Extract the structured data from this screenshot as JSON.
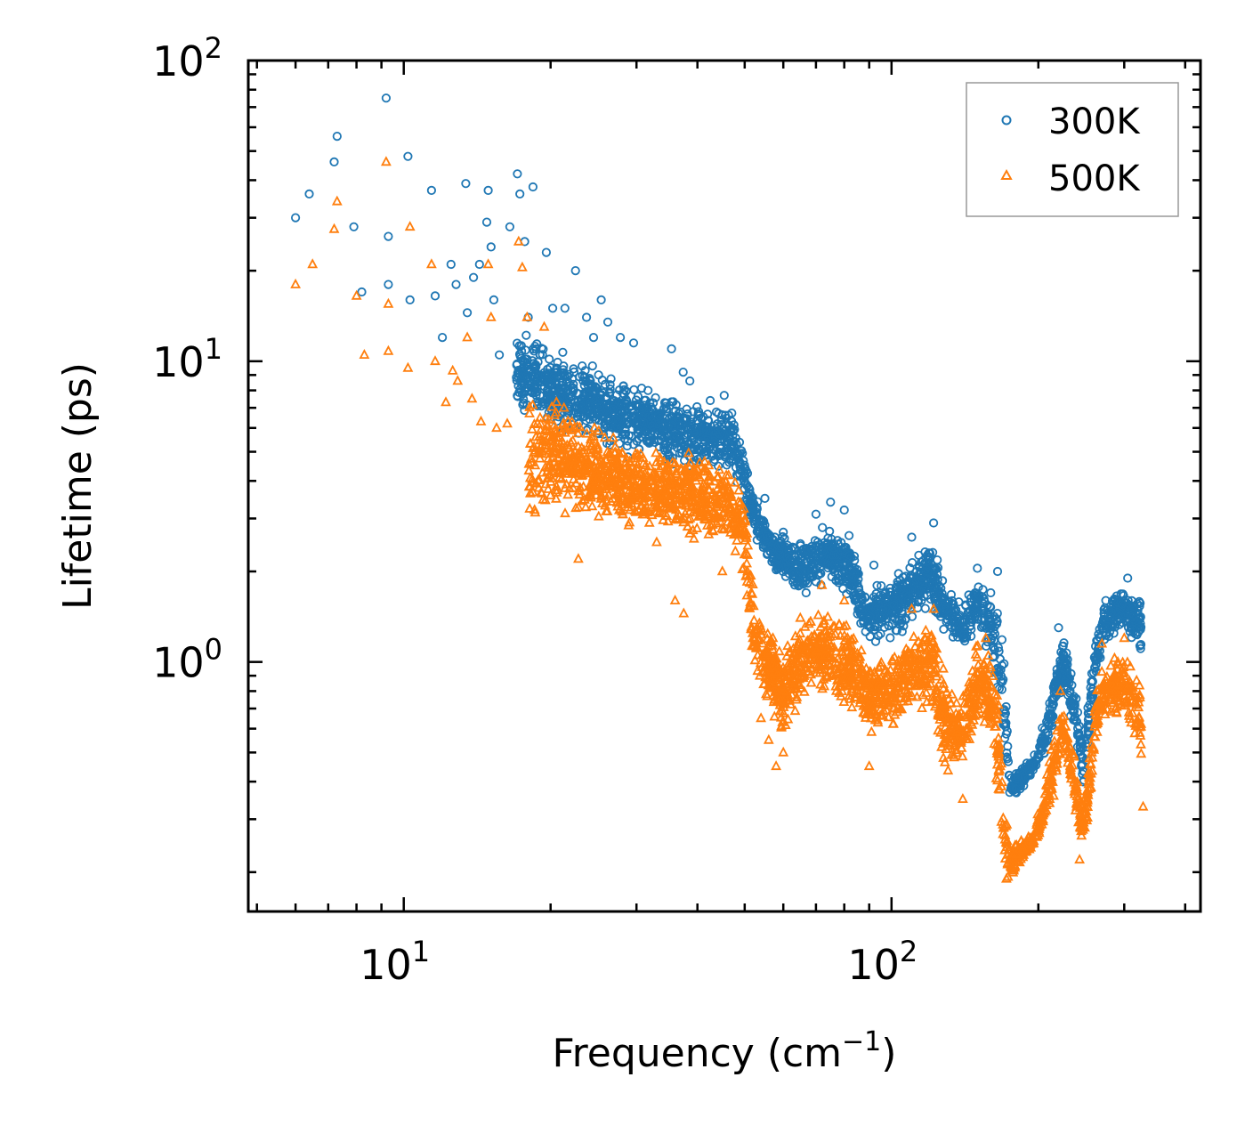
{
  "chart_data": {
    "type": "scatter",
    "title": "",
    "xlabel": "Frequency (cm",
    "xlabel_sup": "−1",
    "xlabel_tail": ")",
    "ylabel": "Lifetime (ps)",
    "xscale": "log",
    "yscale": "log",
    "xlim": [
      4.8,
      430
    ],
    "ylim": [
      0.148,
      100
    ],
    "xticks": [
      {
        "value": 10,
        "base": "10",
        "exp": "1"
      },
      {
        "value": 100,
        "base": "10",
        "exp": "2"
      }
    ],
    "yticks": [
      {
        "value": 1,
        "base": "10",
        "exp": "0"
      },
      {
        "value": 10,
        "base": "10",
        "exp": "1"
      },
      {
        "value": 100,
        "base": "10",
        "exp": "2"
      }
    ],
    "legend_position": "top-right",
    "series": [
      {
        "name": "300K",
        "marker": "circle",
        "color": "#1f77b4",
        "envelope": [
          [
            17,
            6.5,
            14
          ],
          [
            20,
            5.5,
            12
          ],
          [
            25,
            5.0,
            10
          ],
          [
            30,
            4.6,
            9.0
          ],
          [
            35,
            4.4,
            8.0
          ],
          [
            40,
            4.3,
            7.5
          ],
          [
            46,
            4.2,
            7.5
          ],
          [
            48,
            3.8,
            7.0
          ],
          [
            52,
            2.6,
            3.8
          ],
          [
            57,
            2.0,
            2.8
          ],
          [
            65,
            1.6,
            2.6
          ],
          [
            75,
            1.8,
            3.0
          ],
          [
            82,
            1.5,
            2.8
          ],
          [
            88,
            1.2,
            1.8
          ],
          [
            95,
            1.1,
            1.9
          ],
          [
            105,
            1.2,
            2.1
          ],
          [
            120,
            1.5,
            2.6
          ],
          [
            130,
            1.2,
            1.9
          ],
          [
            140,
            1.0,
            1.6
          ],
          [
            150,
            1.3,
            1.9
          ],
          [
            160,
            0.9,
            1.9
          ],
          [
            168,
            0.6,
            1.5
          ],
          [
            175,
            0.32,
            0.45
          ],
          [
            195,
            0.42,
            0.48
          ],
          [
            205,
            0.45,
            0.65
          ],
          [
            215,
            0.6,
            0.95
          ],
          [
            225,
            0.85,
            1.25
          ],
          [
            235,
            0.6,
            0.95
          ],
          [
            248,
            0.35,
            0.55
          ],
          [
            260,
            0.7,
            1.2
          ],
          [
            270,
            1.1,
            1.6
          ],
          [
            300,
            1.3,
            1.8
          ],
          [
            325,
            1.0,
            1.7
          ]
        ],
        "points": [
          [
            6,
            30
          ],
          [
            6.4,
            36
          ],
          [
            7.2,
            46
          ],
          [
            7.3,
            56
          ],
          [
            7.9,
            28
          ],
          [
            8.2,
            17
          ],
          [
            9.2,
            75
          ],
          [
            9.3,
            26
          ],
          [
            9.3,
            18
          ],
          [
            10.2,
            48
          ],
          [
            10.3,
            16
          ],
          [
            11.4,
            37
          ],
          [
            11.6,
            16.5
          ],
          [
            12,
            12
          ],
          [
            12.5,
            21
          ],
          [
            12.8,
            18
          ],
          [
            13.4,
            39
          ],
          [
            13.5,
            14.5
          ],
          [
            13.9,
            19
          ],
          [
            14.3,
            21
          ],
          [
            14.8,
            29
          ],
          [
            14.9,
            37
          ],
          [
            15.1,
            24
          ],
          [
            15.3,
            16
          ],
          [
            15.7,
            10.5
          ],
          [
            16.5,
            28
          ],
          [
            17.1,
            42
          ],
          [
            17.3,
            36
          ],
          [
            17.7,
            25
          ],
          [
            18,
            14
          ],
          [
            18.4,
            38
          ],
          [
            19.6,
            23
          ],
          [
            20.2,
            15
          ],
          [
            21.4,
            15
          ],
          [
            22.5,
            20
          ],
          [
            23.7,
            14
          ],
          [
            24.5,
            12
          ],
          [
            25.4,
            16
          ],
          [
            26.2,
            13.5
          ],
          [
            27.8,
            12
          ],
          [
            29.6,
            11.5
          ],
          [
            35.4,
            11
          ],
          [
            37.4,
            9.2
          ],
          [
            38.6,
            8.6
          ],
          [
            42.5,
            7.4
          ],
          [
            45.4,
            7.7
          ],
          [
            55,
            3.5
          ],
          [
            60,
            2.7
          ],
          [
            70,
            3.1
          ],
          [
            75,
            3.4
          ],
          [
            80,
            3.2
          ],
          [
            92,
            2.1
          ],
          [
            110,
            2.6
          ],
          [
            122,
            2.9
          ],
          [
            150,
            2.05
          ],
          [
            165,
            2.0
          ],
          [
            220,
            1.3
          ],
          [
            275,
            1.6
          ],
          [
            305,
            1.9
          ]
        ]
      },
      {
        "name": "500K",
        "marker": "triangle",
        "color": "#ff7f0e",
        "envelope": [
          [
            18,
            2.6,
            9.0
          ],
          [
            20,
            3.0,
            8.0
          ],
          [
            25,
            2.8,
            6.5
          ],
          [
            30,
            2.6,
            5.8
          ],
          [
            35,
            2.5,
            5.5
          ],
          [
            40,
            2.4,
            5.5
          ],
          [
            46,
            2.3,
            5.0
          ],
          [
            50,
            1.8,
            3.8
          ],
          [
            52,
            0.85,
            2.0
          ],
          [
            55,
            0.7,
            1.4
          ],
          [
            60,
            0.55,
            1.2
          ],
          [
            65,
            0.7,
            1.4
          ],
          [
            70,
            0.75,
            1.6
          ],
          [
            80,
            0.65,
            1.5
          ],
          [
            90,
            0.55,
            1.1
          ],
          [
            100,
            0.55,
            1.1
          ],
          [
            110,
            0.7,
            1.3
          ],
          [
            120,
            0.65,
            1.45
          ],
          [
            130,
            0.4,
            0.9
          ],
          [
            140,
            0.4,
            0.85
          ],
          [
            150,
            0.6,
            1.2
          ],
          [
            160,
            0.55,
            1.15
          ],
          [
            165,
            0.35,
            0.9
          ],
          [
            170,
            0.19,
            0.35
          ],
          [
            175,
            0.185,
            0.25
          ],
          [
            195,
            0.24,
            0.27
          ],
          [
            205,
            0.27,
            0.38
          ],
          [
            215,
            0.35,
            0.6
          ],
          [
            225,
            0.5,
            0.75
          ],
          [
            235,
            0.35,
            0.55
          ],
          [
            248,
            0.22,
            0.33
          ],
          [
            260,
            0.42,
            0.8
          ],
          [
            270,
            0.6,
            1.05
          ],
          [
            300,
            0.65,
            1.1
          ],
          [
            325,
            0.45,
            0.95
          ]
        ],
        "points": [
          [
            6,
            18
          ],
          [
            6.5,
            21
          ],
          [
            7.2,
            27.5
          ],
          [
            7.3,
            34
          ],
          [
            8,
            16.5
          ],
          [
            8.3,
            10.5
          ],
          [
            9.2,
            46
          ],
          [
            9.3,
            15.5
          ],
          [
            9.3,
            10.8
          ],
          [
            10.2,
            9.5
          ],
          [
            10.3,
            28
          ],
          [
            11.4,
            21
          ],
          [
            11.6,
            10
          ],
          [
            12.2,
            7.3
          ],
          [
            12.6,
            9.3
          ],
          [
            12.9,
            8.6
          ],
          [
            13.5,
            12
          ],
          [
            13.8,
            7.5
          ],
          [
            14.4,
            6.3
          ],
          [
            14.9,
            21
          ],
          [
            15.1,
            14
          ],
          [
            15.5,
            6
          ],
          [
            16.3,
            6.2
          ],
          [
            17.2,
            25
          ],
          [
            17.5,
            20.5
          ],
          [
            17.9,
            14
          ],
          [
            18.5,
            5.2
          ],
          [
            19.4,
            13
          ],
          [
            21.3,
            7
          ],
          [
            22.8,
            2.2
          ],
          [
            24.6,
            6
          ],
          [
            26,
            4
          ],
          [
            28,
            3.5
          ],
          [
            33,
            2.5
          ],
          [
            36,
            1.6
          ],
          [
            37.5,
            1.45
          ],
          [
            45,
            2.0
          ],
          [
            52,
            1.2
          ],
          [
            54,
            0.65
          ],
          [
            56,
            0.55
          ],
          [
            58,
            0.45
          ],
          [
            60,
            0.5
          ],
          [
            65,
            1.4
          ],
          [
            72,
            1.8
          ],
          [
            80,
            1.6
          ],
          [
            90,
            0.45
          ],
          [
            110,
            1.5
          ],
          [
            122,
            1.5
          ],
          [
            140,
            0.35
          ],
          [
            156,
            1.2
          ],
          [
            172,
            0.19
          ],
          [
            222,
            0.8
          ],
          [
            243,
            0.22
          ],
          [
            270,
            1.15
          ],
          [
            300,
            1.2
          ],
          [
            328,
            0.33
          ]
        ]
      }
    ]
  }
}
